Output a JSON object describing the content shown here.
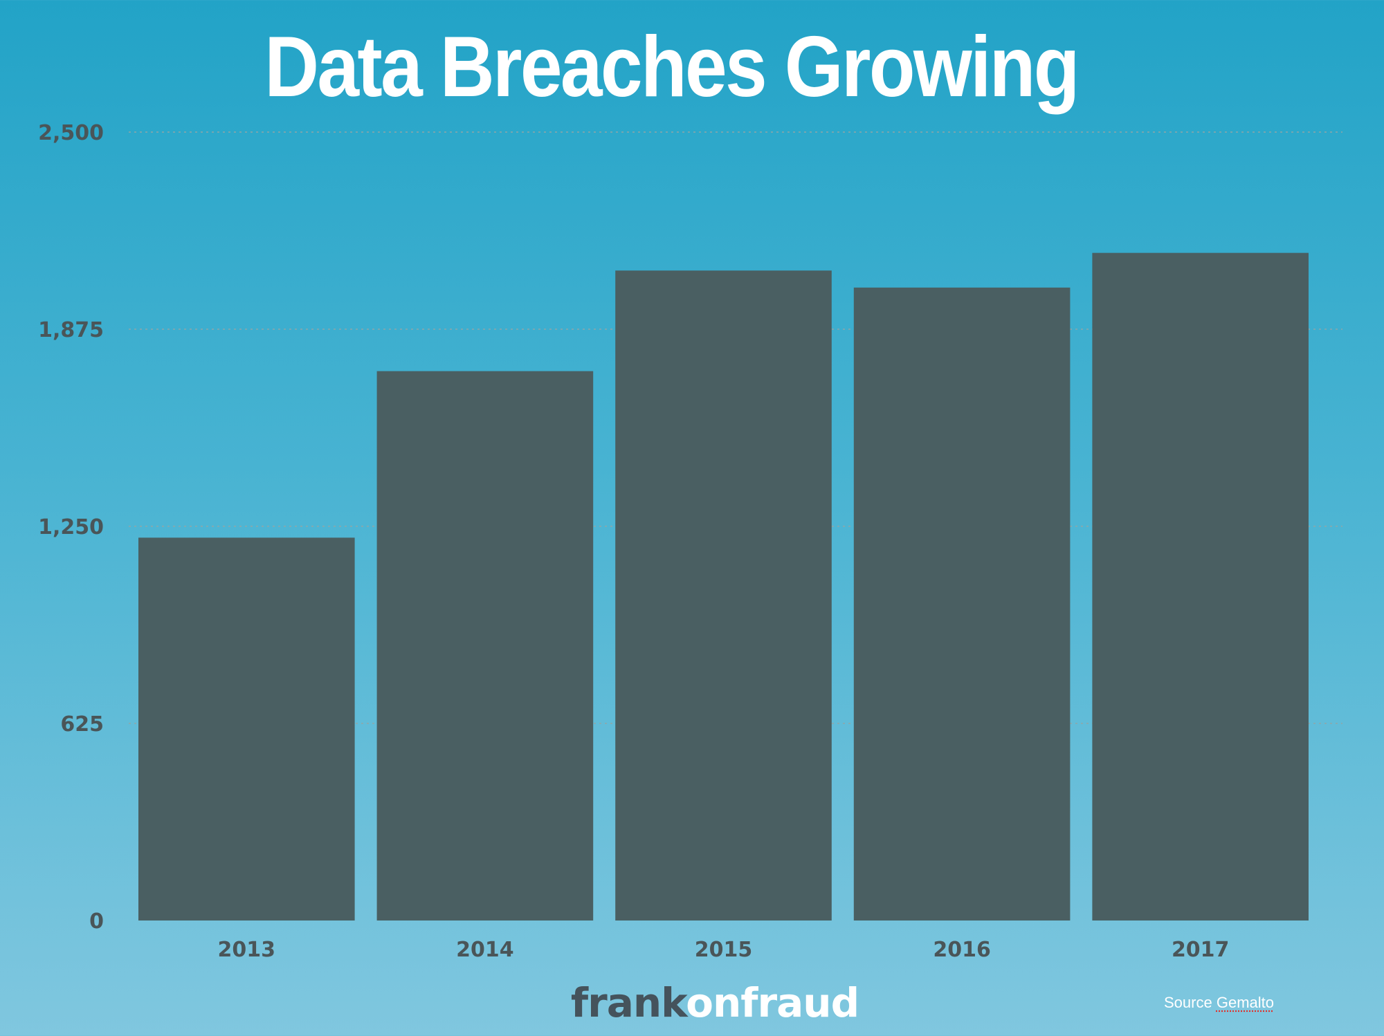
{
  "title": "Data Breaches Growing",
  "chart_data": {
    "type": "bar",
    "title": "Data Breaches Growing",
    "categories": [
      "2013",
      "2014",
      "2015",
      "2016",
      "2017"
    ],
    "values": [
      1214,
      1742,
      2061,
      2007,
      2117
    ],
    "ylim": [
      0,
      2500
    ],
    "yticks": [
      0,
      625,
      1250,
      1875,
      2500
    ],
    "ytick_labels": [
      "0",
      "625",
      "1,250",
      "1,875",
      "2,500"
    ],
    "xlabel": "",
    "ylabel": "",
    "grid": true,
    "bar_color": "#4a5f62",
    "tick_color": "#4a5558",
    "grid_color": "#8fa6a8"
  },
  "footer": {
    "brand_part1": "frank",
    "brand_part2": "onfraud",
    "source_prefix": "Source",
    "source_name": "Gemalto"
  },
  "colors": {
    "bg_top": "#22a3c7",
    "bg_bottom": "#80c7df",
    "title": "#ffffff",
    "brand_dark": "#45535c",
    "brand_light": "#ffffff"
  }
}
